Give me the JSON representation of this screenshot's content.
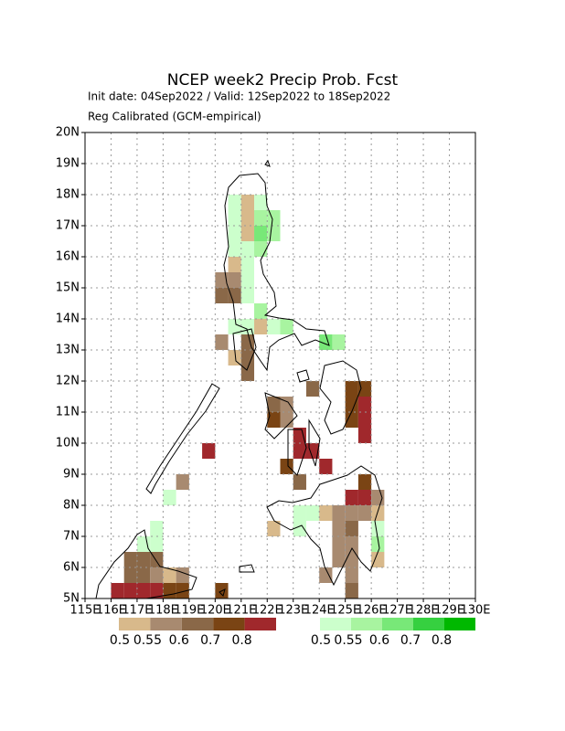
{
  "map": {
    "title": "NCEP week2 Precip Prob. Fcst",
    "subtitle": "Init date: 04Sep2022 / Valid: 12Sep2022 to 18Sep2022",
    "note": "Reg Calibrated (GCM-empirical)",
    "xlim": [
      115,
      130
    ],
    "ylim": [
      5,
      20
    ],
    "xticks": [
      {
        "value": 115,
        "label": "115E"
      },
      {
        "value": 116,
        "label": "116E"
      },
      {
        "value": 117,
        "label": "117E"
      },
      {
        "value": 118,
        "label": "118E"
      },
      {
        "value": 119,
        "label": "119E"
      },
      {
        "value": 120,
        "label": "120E"
      },
      {
        "value": 121,
        "label": "121E"
      },
      {
        "value": 122,
        "label": "122E"
      },
      {
        "value": 123,
        "label": "123E"
      },
      {
        "value": 124,
        "label": "124E"
      },
      {
        "value": 125,
        "label": "125E"
      },
      {
        "value": 126,
        "label": "126E"
      },
      {
        "value": 127,
        "label": "127E"
      },
      {
        "value": 128,
        "label": "128E"
      },
      {
        "value": 129,
        "label": "129E"
      },
      {
        "value": 130,
        "label": "130E"
      }
    ],
    "yticks": [
      {
        "value": 5,
        "label": "5N"
      },
      {
        "value": 6,
        "label": "6N"
      },
      {
        "value": 7,
        "label": "7N"
      },
      {
        "value": 8,
        "label": "8N"
      },
      {
        "value": 9,
        "label": "9N"
      },
      {
        "value": 10,
        "label": "10N"
      },
      {
        "value": 11,
        "label": "11N"
      },
      {
        "value": 12,
        "label": "12N"
      },
      {
        "value": 13,
        "label": "13N"
      },
      {
        "value": 14,
        "label": "14N"
      },
      {
        "value": 15,
        "label": "15N"
      },
      {
        "value": 16,
        "label": "16N"
      },
      {
        "value": 17,
        "label": "17N"
      },
      {
        "value": 18,
        "label": "18N"
      },
      {
        "value": 19,
        "label": "19N"
      },
      {
        "value": 20,
        "label": "20N"
      }
    ],
    "cell_size": 0.5,
    "dry_legend": {
      "labels": [
        "0.5",
        "0.55",
        "0.6",
        "0.7",
        "0.8"
      ],
      "colors": [
        "#d8b98b",
        "#a88a70",
        "#8a6848",
        "#7a4414",
        "#a0282c"
      ]
    },
    "wet_legend": {
      "labels": [
        "0.5",
        "0.55",
        "0.6",
        "0.7",
        "0.8"
      ],
      "colors": [
        "#ccffcc",
        "#a8f4a0",
        "#78e878",
        "#36d040",
        "#00b800"
      ]
    },
    "cells": [
      [
        120.5,
        17.5,
        5
      ],
      [
        121,
        17.5,
        0
      ],
      [
        121.5,
        17.5,
        5
      ],
      [
        120.5,
        17,
        5
      ],
      [
        121,
        17,
        0
      ],
      [
        121.5,
        17,
        6
      ],
      [
        122,
        17,
        6
      ],
      [
        120.5,
        16.5,
        5
      ],
      [
        121,
        16.5,
        0
      ],
      [
        121.5,
        16.5,
        7
      ],
      [
        122,
        16.5,
        6
      ],
      [
        120.5,
        16,
        5
      ],
      [
        121,
        16,
        5
      ],
      [
        121.5,
        16,
        6
      ],
      [
        120.5,
        15.5,
        0
      ],
      [
        121,
        15.5,
        5
      ],
      [
        120,
        15,
        1
      ],
      [
        120.5,
        15,
        1
      ],
      [
        121,
        15,
        5
      ],
      [
        120,
        14.5,
        2
      ],
      [
        120.5,
        14.5,
        2
      ],
      [
        121,
        14.5,
        5
      ],
      [
        121.5,
        14,
        6
      ],
      [
        120.5,
        13.5,
        5
      ],
      [
        121,
        13.5,
        5
      ],
      [
        121.5,
        13.5,
        0
      ],
      [
        122,
        13.5,
        5
      ],
      [
        122.5,
        13.5,
        6
      ],
      [
        120,
        13,
        1
      ],
      [
        121,
        13,
        2
      ],
      [
        120.5,
        12.5,
        0
      ],
      [
        121,
        12.5,
        2
      ],
      [
        121,
        12,
        2
      ],
      [
        124,
        13,
        7
      ],
      [
        124.5,
        13,
        6
      ],
      [
        123.5,
        11.5,
        2
      ],
      [
        125,
        11.5,
        3
      ],
      [
        125.5,
        11.5,
        3
      ],
      [
        122,
        11,
        2
      ],
      [
        122.5,
        11,
        1
      ],
      [
        125,
        11,
        3
      ],
      [
        125.5,
        11,
        4
      ],
      [
        122,
        10.5,
        3
      ],
      [
        122.5,
        10.5,
        1
      ],
      [
        125,
        10.5,
        3
      ],
      [
        125.5,
        10.5,
        4
      ],
      [
        123,
        10,
        4
      ],
      [
        125.5,
        10,
        4
      ],
      [
        123,
        9.5,
        4
      ],
      [
        123.5,
        9.5,
        4
      ],
      [
        122.5,
        9,
        3
      ],
      [
        124,
        9,
        4
      ],
      [
        123,
        8.5,
        2
      ],
      [
        125.5,
        8.5,
        3
      ],
      [
        119.5,
        9.5,
        4
      ],
      [
        118.5,
        8.5,
        1
      ],
      [
        125,
        8,
        4
      ],
      [
        125.5,
        8,
        4
      ],
      [
        126,
        8,
        1
      ],
      [
        123,
        7.5,
        5
      ],
      [
        123.5,
        7.5,
        5
      ],
      [
        124,
        7.5,
        0
      ],
      [
        124.5,
        7.5,
        1
      ],
      [
        125,
        7.5,
        1
      ],
      [
        125.5,
        7.5,
        1
      ],
      [
        126,
        7.5,
        0
      ],
      [
        122,
        7,
        0
      ],
      [
        123,
        7,
        5
      ],
      [
        124.5,
        7,
        1
      ],
      [
        125,
        7,
        2
      ],
      [
        126,
        7,
        5
      ],
      [
        124.5,
        6.5,
        1
      ],
      [
        125,
        6.5,
        1
      ],
      [
        126,
        6.5,
        6
      ],
      [
        124.5,
        6,
        1
      ],
      [
        125,
        6,
        1
      ],
      [
        126,
        6,
        0
      ],
      [
        124,
        5.5,
        1
      ],
      [
        125,
        5.5,
        1
      ],
      [
        125,
        5,
        2
      ],
      [
        117,
        6.5,
        5
      ],
      [
        117.5,
        6.5,
        5
      ],
      [
        117.5,
        7,
        5
      ],
      [
        118,
        8,
        5
      ],
      [
        116.5,
        6,
        2
      ],
      [
        117,
        6,
        2
      ],
      [
        117.5,
        6,
        2
      ],
      [
        116.5,
        5.5,
        2
      ],
      [
        117,
        5.5,
        2
      ],
      [
        117.5,
        5.5,
        1
      ],
      [
        118,
        5.5,
        0
      ],
      [
        118.5,
        5.5,
        1
      ],
      [
        116,
        5,
        4
      ],
      [
        116.5,
        5,
        4
      ],
      [
        117,
        5,
        4
      ],
      [
        117.5,
        5,
        4
      ],
      [
        118,
        5,
        3
      ],
      [
        118.5,
        5,
        3
      ],
      [
        120,
        5,
        3
      ]
    ]
  }
}
